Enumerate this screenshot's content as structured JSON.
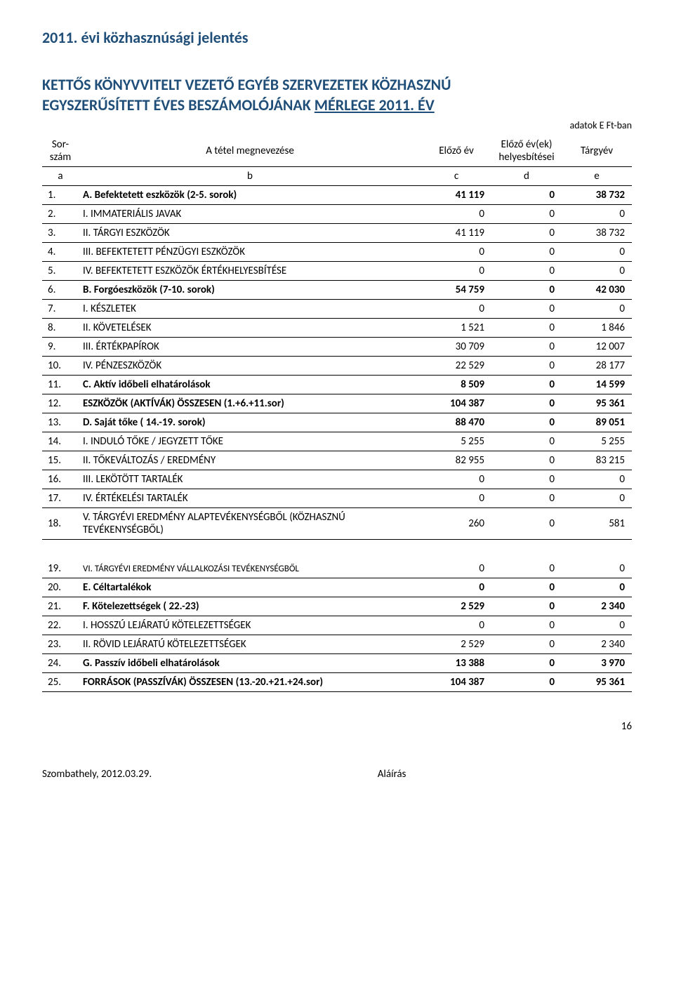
{
  "doc_title": "2011. évi közhasznúsági jelentés",
  "heading_line1": "KETTŐS KÖNYVVITELT VEZETŐ EGYÉB SZERVEZETEK KÖZHASZNÚ",
  "heading_line2a": "EGYSZERŰSÍTETT ÉVES BESZÁMOLÓJÁNAK ",
  "heading_line2b": "MÉRLEGE 2011. ÉV",
  "unit_note": "adatok E Ft-ban",
  "table": {
    "header": {
      "col1a": "Sor-",
      "col1b": "szám",
      "col2": "A tétel megnevezése",
      "col3": "Előző év",
      "col4a": "Előző év(ek)",
      "col4b": "helyesbítései",
      "col5": "Tárgyév"
    },
    "subheader": {
      "a": "a",
      "b": "b",
      "c": "c",
      "d": "d",
      "e": "e"
    },
    "rows": [
      {
        "n": "1.",
        "desc": "A. Befektetett eszközök (2-5. sorok)",
        "c1": "41 119",
        "c2": "0",
        "c3": "38 732",
        "bold": true
      },
      {
        "n": "2.",
        "desc": "I. IMMATERIÁLIS JAVAK",
        "c1": "0",
        "c2": "0",
        "c3": "0"
      },
      {
        "n": "3.",
        "desc": "II. TÁRGYI ESZKÖZÖK",
        "c1": "41 119",
        "c2": "0",
        "c3": "38 732"
      },
      {
        "n": "4.",
        "desc": "III. BEFEKTETETT PÉNZÜGYI ESZKÖZÖK",
        "c1": "0",
        "c2": "0",
        "c3": "0"
      },
      {
        "n": "5.",
        "desc": "IV. BEFEKTETETT ESZKÖZÖK ÉRTÉKHELYESBÍTÉSE",
        "c1": "0",
        "c2": "0",
        "c3": "0"
      },
      {
        "n": "6.",
        "desc": "B. Forgóeszközök (7-10. sorok)",
        "c1": "54 759",
        "c2": "0",
        "c3": "42 030",
        "bold": true
      },
      {
        "n": "7.",
        "desc": "I. KÉSZLETEK",
        "c1": "0",
        "c2": "0",
        "c3": "0"
      },
      {
        "n": "8.",
        "desc": "II. KÖVETELÉSEK",
        "c1": "1 521",
        "c2": "0",
        "c3": "1 846"
      },
      {
        "n": "9.",
        "desc": "III. ÉRTÉKPAPÍROK",
        "c1": "30 709",
        "c2": "0",
        "c3": "12 007"
      },
      {
        "n": "10.",
        "desc": "IV. PÉNZESZKÖZÖK",
        "c1": "22 529",
        "c2": "0",
        "c3": "28 177"
      },
      {
        "n": "11.",
        "desc": "C. Aktív időbeli elhatárolások",
        "c1": "8 509",
        "c2": "0",
        "c3": "14 599",
        "bold": true
      },
      {
        "n": "12.",
        "desc": "ESZKÖZÖK (AKTÍVÁK) ÖSSZESEN (1.+6.+11.sor)",
        "c1": "104 387",
        "c2": "0",
        "c3": "95 361",
        "bold": true
      },
      {
        "n": "13.",
        "desc": "D. Saját tőke ( 14.-19.   sorok)",
        "c1": "88 470",
        "c2": "0",
        "c3": "89 051",
        "bold": true
      },
      {
        "n": "14.",
        "desc": "I. INDULÓ TŐKE / JEGYZETT TŐKE",
        "c1": "5 255",
        "c2": "0",
        "c3": "5 255"
      },
      {
        "n": "15.",
        "desc": "II. TŐKEVÁLTOZÁS / EREDMÉNY",
        "c1": "82 955",
        "c2": "0",
        "c3": "83 215"
      },
      {
        "n": "16.",
        "desc": "III. LEKÖTÖTT TARTALÉK",
        "c1": "0",
        "c2": "0",
        "c3": "0"
      },
      {
        "n": "17.",
        "desc": "IV. ÉRTÉKELÉSI TARTALÉK",
        "c1": "0",
        "c2": "0",
        "c3": "0"
      },
      {
        "n": "18.",
        "desc": "V. TÁRGYÉVI EREDMÉNY ALAPTEVÉKENYSÉGBŐL (KÖZHASZNÚ TEVÉKENYSÉGBŐL)",
        "c1": "260",
        "c2": "0",
        "c3": "581"
      }
    ],
    "rows2": [
      {
        "n": "19.",
        "desc": "VI. TÁRGYÉVI EREDMÉNY VÁLLALKOZÁSI TEVÉKENYSÉGBŐL",
        "c1": "0",
        "c2": "0",
        "c3": "0",
        "small": true
      },
      {
        "n": "20.",
        "desc": "E. Céltartalékok",
        "c1": "0",
        "c2": "0",
        "c3": "0",
        "bold": true
      },
      {
        "n": "21.",
        "desc": "F. Kötelezettségek ( 22.-23)",
        "c1": "2 529",
        "c2": "0",
        "c3": "2 340",
        "bold": true
      },
      {
        "n": "22.",
        "desc": "I. HOSSZÚ LEJÁRATÚ KÖTELEZETTSÉGEK",
        "c1": "0",
        "c2": "0",
        "c3": "0"
      },
      {
        "n": "23.",
        "desc": "II. RÖVID LEJÁRATÚ KÖTELEZETTSÉGEK",
        "c1": "2 529",
        "c2": "0",
        "c3": "2 340"
      },
      {
        "n": "24.",
        "desc": "G. Passzív időbeli elhatárolások",
        "c1": "13 388",
        "c2": "0",
        "c3": "3 970",
        "bold": true
      },
      {
        "n": "25.",
        "desc": "FORRÁSOK (PASSZÍVÁK) ÖSSZESEN (13.-20.+21.+24.sor)",
        "c1": "104 387",
        "c2": "0",
        "c3": "95 361",
        "bold": true
      }
    ]
  },
  "footer": {
    "left": "Szombathely, 2012.03.29.",
    "center": "Aláírás"
  },
  "page_num": "16"
}
